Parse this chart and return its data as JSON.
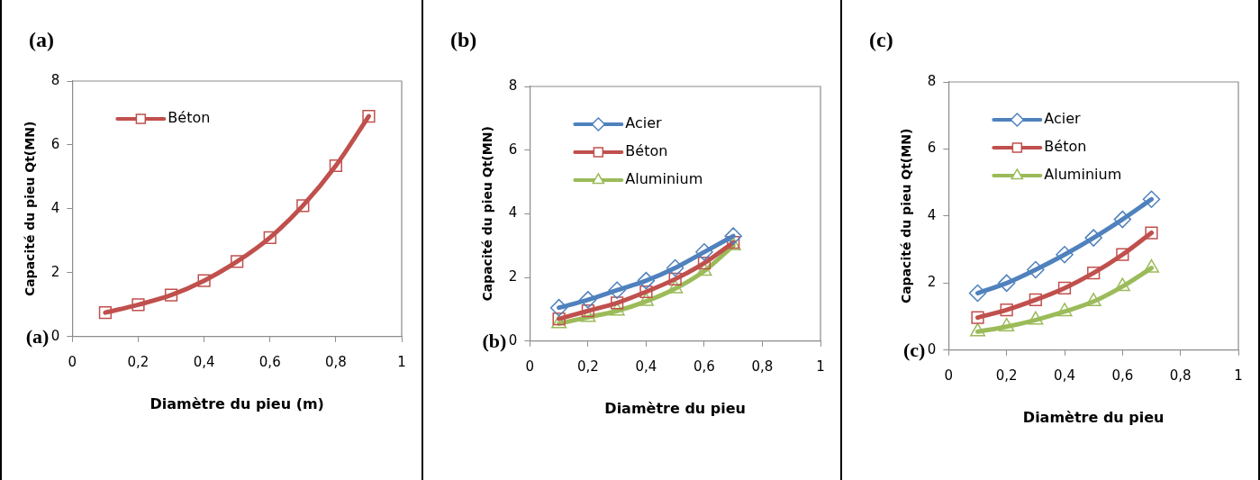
{
  "chart_data": [
    {
      "type": "line",
      "title": "(a)",
      "xlabel": "Diamètre du pieu (m)",
      "ylabel": "Capacité du pieu Qt(MN)",
      "annotations": [
        "(a)"
      ],
      "x": [
        0.1,
        0.2,
        0.3,
        0.4,
        0.5,
        0.6,
        0.7,
        0.8,
        0.9
      ],
      "series": [
        {
          "name": "Béton",
          "color": "#c0504d",
          "marker": "square",
          "values": [
            0.75,
            1.0,
            1.3,
            1.75,
            2.35,
            3.1,
            4.1,
            5.35,
            6.9
          ]
        }
      ],
      "xlim": [
        0,
        1
      ],
      "xticks": [
        {
          "value": 0,
          "label": "0"
        },
        {
          "value": 0.2,
          "label": "0,2"
        },
        {
          "value": 0.4,
          "label": "0,4"
        },
        {
          "value": 0.6,
          "label": "0,6"
        },
        {
          "value": 0.8,
          "label": "0,8"
        },
        {
          "value": 1,
          "label": "1"
        }
      ],
      "ylim": [
        0,
        8
      ],
      "yticks": [
        0,
        2,
        4,
        6,
        8
      ],
      "grid": false,
      "legend": "top left",
      "line_style": "solid"
    },
    {
      "type": "line",
      "title": "(b)",
      "xlabel": "Diamètre du pieu",
      "ylabel": "Capacité du pieu Qt(MN)",
      "annotations": [
        "(b)"
      ],
      "x": [
        0.1,
        0.2,
        0.3,
        0.4,
        0.5,
        0.6,
        0.7
      ],
      "series": [
        {
          "name": "Acier",
          "color": "#4f81bd",
          "marker": "diamond",
          "values": [
            1.05,
            1.3,
            1.6,
            1.9,
            2.3,
            2.8,
            3.3
          ]
        },
        {
          "name": "Béton",
          "color": "#c0504d",
          "marker": "square",
          "values": [
            0.7,
            0.95,
            1.2,
            1.55,
            1.95,
            2.45,
            3.1
          ]
        },
        {
          "name": "Aluminium",
          "color": "#9bbb59",
          "marker": "triangle",
          "values": [
            0.55,
            0.75,
            0.95,
            1.25,
            1.65,
            2.2,
            3.0
          ]
        }
      ],
      "xlim": [
        0,
        1
      ],
      "xticks": [
        {
          "value": 0,
          "label": "0"
        },
        {
          "value": 0.2,
          "label": "0,2"
        },
        {
          "value": 0.4,
          "label": "0,4"
        },
        {
          "value": 0.6,
          "label": "0,6"
        },
        {
          "value": 0.8,
          "label": "0,8"
        },
        {
          "value": 1,
          "label": "1"
        }
      ],
      "ylim": [
        0,
        8
      ],
      "yticks": [
        0,
        2,
        4,
        6,
        8
      ],
      "grid": false,
      "legend": "top left",
      "line_style": "solid"
    },
    {
      "type": "line",
      "title": "(c)",
      "xlabel": "Diamètre du pieu",
      "ylabel": "Capacité du pieu Qt(MN)",
      "annotations": [
        "(c)"
      ],
      "x": [
        0.1,
        0.2,
        0.3,
        0.4,
        0.5,
        0.6,
        0.7
      ],
      "series": [
        {
          "name": "Acier",
          "color": "#4f81bd",
          "marker": "diamond",
          "values": [
            1.7,
            2.0,
            2.4,
            2.85,
            3.35,
            3.9,
            4.5
          ]
        },
        {
          "name": "Béton",
          "color": "#c0504d",
          "marker": "square",
          "values": [
            0.97,
            1.2,
            1.5,
            1.85,
            2.3,
            2.85,
            3.5
          ]
        },
        {
          "name": "Aluminium",
          "color": "#9bbb59",
          "marker": "triangle",
          "values": [
            0.55,
            0.7,
            0.9,
            1.15,
            1.45,
            1.9,
            2.45
          ]
        }
      ],
      "xlim": [
        0,
        1
      ],
      "xticks": [
        {
          "value": 0,
          "label": "0"
        },
        {
          "value": 0.2,
          "label": "0,2"
        },
        {
          "value": 0.4,
          "label": "0,4"
        },
        {
          "value": 0.6,
          "label": "0,6"
        },
        {
          "value": 0.8,
          "label": "0,8"
        },
        {
          "value": 1,
          "label": "1"
        }
      ],
      "ylim": [
        0,
        8
      ],
      "yticks": [
        0,
        2,
        4,
        6,
        8
      ],
      "grid": false,
      "legend": "top left",
      "line_style": "solid"
    }
  ]
}
